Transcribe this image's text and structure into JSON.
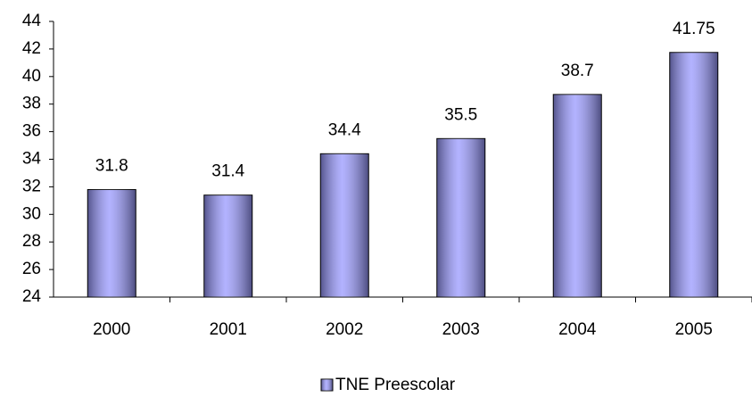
{
  "chart_data": {
    "type": "bar",
    "categories": [
      "2000",
      "2001",
      "2002",
      "2003",
      "2004",
      "2005"
    ],
    "series": [
      {
        "name": "TNE Preescolar",
        "color": "#9999ff",
        "values": [
          31.8,
          31.4,
          34.4,
          35.5,
          38.7,
          41.75
        ]
      }
    ],
    "ylim": [
      24,
      44
    ],
    "yticks": [
      24,
      26,
      28,
      30,
      32,
      34,
      36,
      38,
      40,
      42,
      44
    ],
    "grid": false,
    "legend": "bottom"
  }
}
